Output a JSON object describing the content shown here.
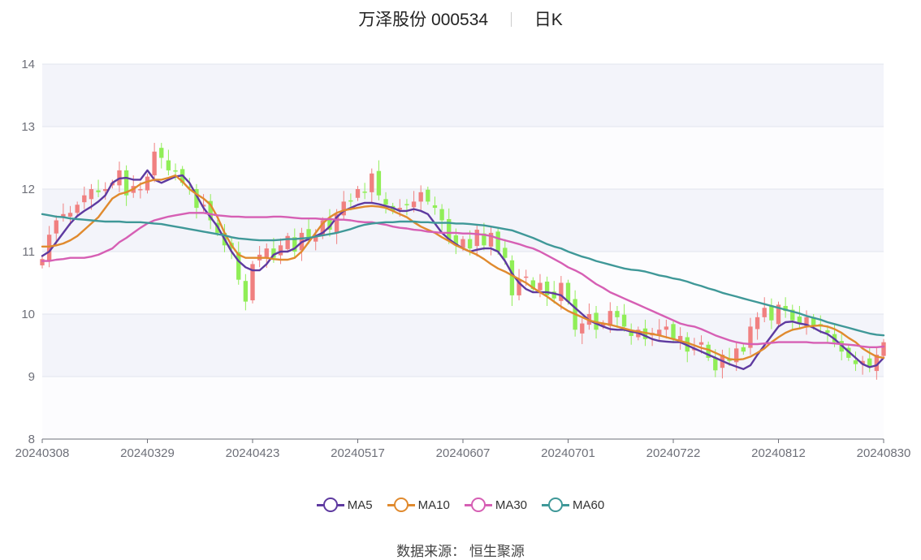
{
  "header": {
    "stock_name": "万泽股份 000534",
    "period": "日K"
  },
  "source_text": "数据来源：  恒生聚源",
  "colors": {
    "up": "#f08080",
    "down": "#90ee57",
    "MA5": "#5e3aa0",
    "MA10": "#e08a2e",
    "MA30": "#d65fb4",
    "MA60": "#3f9898",
    "band": "#f3f4fa",
    "grid": "#e2e4ee",
    "axis": "#6e7079"
  },
  "chart_data": {
    "type": "candlestick",
    "ylim": [
      8,
      14
    ],
    "y_ticks": [
      "8",
      "9",
      "10",
      "11",
      "12",
      "13",
      "14"
    ],
    "x_ticks": [
      "20240308",
      "20240329",
      "20240423",
      "20240517",
      "20240607",
      "20240701",
      "20240722",
      "20240812",
      "20240830"
    ],
    "x_tick_positions": [
      0,
      15,
      30,
      45,
      60,
      75,
      90,
      105,
      120
    ],
    "candle_count": 121,
    "closes": [
      10.88,
      11.27,
      11.5,
      11.6,
      11.62,
      11.75,
      11.9,
      12.0,
      11.95,
      12.0,
      12.1,
      12.3,
      11.9,
      12.05,
      12.0,
      12.2,
      12.6,
      12.5,
      12.3,
      12.28,
      12.1,
      12.02,
      11.7,
      11.75,
      11.5,
      11.3,
      11.1,
      11.05,
      10.55,
      10.2,
      10.8,
      10.95,
      11.05,
      10.9,
      11.1,
      11.25,
      11.0,
      11.3,
      11.2,
      11.25,
      11.5,
      11.35,
      11.6,
      11.8,
      11.8,
      12.0,
      11.95,
      12.25,
      11.9,
      11.75,
      11.65,
      11.7,
      11.75,
      11.8,
      11.95,
      11.8,
      11.7,
      11.5,
      11.2,
      11.1,
      11.2,
      11.05,
      11.35,
      11.1,
      11.3,
      11.0,
      10.9,
      10.3,
      10.55,
      10.6,
      10.4,
      10.5,
      10.3,
      10.25,
      10.5,
      10.2,
      9.75,
      9.85,
      10.0,
      9.75,
      9.85,
      10.05,
      9.95,
      9.8,
      9.65,
      9.75,
      9.6,
      9.7,
      9.75,
      9.8,
      9.6,
      9.65,
      9.4,
      9.45,
      9.55,
      9.3,
      9.1,
      9.35,
      9.25,
      9.45,
      9.4,
      9.8,
      9.95,
      10.1,
      9.9,
      10.15,
      10.05,
      9.9,
      9.85,
      9.95,
      9.8,
      9.8,
      9.7,
      9.55,
      9.4,
      9.3,
      9.2,
      9.25,
      9.15,
      9.35,
      9.55
    ],
    "series": [
      {
        "name": "MA5",
        "values": [
          10.93,
          11.0,
          11.15,
          11.3,
          11.45,
          11.57,
          11.65,
          11.72,
          11.8,
          11.9,
          12.1,
          12.17,
          12.18,
          12.15,
          12.15,
          12.3,
          12.15,
          12.1,
          12.15,
          12.2,
          12.22,
          12.1,
          11.9,
          11.7,
          11.55,
          11.4,
          11.2,
          11.0,
          10.85,
          10.75,
          10.7,
          10.7,
          10.8,
          10.95,
          11.0,
          11.0,
          11.05,
          11.15,
          11.2,
          11.25,
          11.3,
          11.4,
          11.55,
          11.65,
          11.7,
          11.75,
          11.78,
          11.78,
          11.76,
          11.73,
          11.7,
          11.65,
          11.65,
          11.68,
          11.65,
          11.6,
          11.45,
          11.3,
          11.2,
          11.12,
          11.05,
          11.0,
          11.03,
          11.05,
          11.05,
          11.0,
          10.85,
          10.65,
          10.5,
          10.4,
          10.35,
          10.35,
          10.35,
          10.33,
          10.3,
          10.2,
          10.1,
          10.0,
          9.9,
          9.85,
          9.8,
          9.76,
          9.75,
          9.75,
          9.72,
          9.7,
          9.65,
          9.6,
          9.57,
          9.56,
          9.55,
          9.55,
          9.5,
          9.45,
          9.4,
          9.35,
          9.3,
          9.25,
          9.2,
          9.16,
          9.12,
          9.18,
          9.35,
          9.5,
          9.65,
          9.8,
          9.87,
          9.88,
          9.85,
          9.83,
          9.78,
          9.72,
          9.68,
          9.6,
          9.5,
          9.4,
          9.3,
          9.2,
          9.15,
          9.18,
          9.3
        ]
      },
      {
        "name": "MA10",
        "values": [
          11.08,
          11.08,
          11.1,
          11.13,
          11.18,
          11.25,
          11.35,
          11.45,
          11.55,
          11.7,
          11.85,
          11.92,
          11.95,
          12.0,
          12.08,
          12.12,
          12.15,
          12.15,
          12.18,
          12.22,
          12.12,
          12.0,
          11.92,
          11.85,
          11.75,
          11.55,
          11.3,
          11.1,
          10.95,
          10.9,
          10.9,
          10.9,
          10.9,
          10.88,
          10.87,
          10.87,
          10.9,
          11.0,
          11.15,
          11.3,
          11.45,
          11.55,
          11.62,
          11.66,
          11.68,
          11.7,
          11.72,
          11.73,
          11.72,
          11.7,
          11.65,
          11.6,
          11.55,
          11.47,
          11.4,
          11.35,
          11.3,
          11.23,
          11.17,
          11.1,
          11.05,
          11.0,
          10.95,
          10.88,
          10.8,
          10.73,
          10.68,
          10.62,
          10.56,
          10.5,
          10.42,
          10.35,
          10.28,
          10.2,
          10.12,
          10.05,
          10.0,
          9.95,
          9.9,
          9.87,
          9.85,
          9.83,
          9.8,
          9.77,
          9.74,
          9.72,
          9.7,
          9.68,
          9.66,
          9.63,
          9.6,
          9.57,
          9.54,
          9.5,
          9.46,
          9.43,
          9.38,
          9.33,
          9.28,
          9.27,
          9.28,
          9.32,
          9.38,
          9.45,
          9.55,
          9.63,
          9.7,
          9.75,
          9.77,
          9.8,
          9.81,
          9.82,
          9.8,
          9.76,
          9.7,
          9.62,
          9.55,
          9.45,
          9.38,
          9.32,
          9.3
        ]
      },
      {
        "name": "MA30",
        "values": [
          10.85,
          10.85,
          10.87,
          10.88,
          10.9,
          10.9,
          10.9,
          10.92,
          10.95,
          11.0,
          11.05,
          11.15,
          11.22,
          11.3,
          11.38,
          11.45,
          11.5,
          11.53,
          11.56,
          11.58,
          11.6,
          11.62,
          11.62,
          11.62,
          11.6,
          11.58,
          11.57,
          11.56,
          11.56,
          11.55,
          11.55,
          11.55,
          11.55,
          11.56,
          11.56,
          11.55,
          11.54,
          11.53,
          11.53,
          11.53,
          11.52,
          11.52,
          11.51,
          11.51,
          11.5,
          11.48,
          11.47,
          11.47,
          11.45,
          11.43,
          11.4,
          11.38,
          11.37,
          11.35,
          11.34,
          11.32,
          11.31,
          11.3,
          11.3,
          11.3,
          11.29,
          11.29,
          11.28,
          11.27,
          11.25,
          11.21,
          11.18,
          11.15,
          11.12,
          11.08,
          11.05,
          11.0,
          10.94,
          10.88,
          10.82,
          10.75,
          10.7,
          10.64,
          10.56,
          10.48,
          10.42,
          10.35,
          10.3,
          10.25,
          10.2,
          10.15,
          10.1,
          10.05,
          10.0,
          9.95,
          9.9,
          9.85,
          9.82,
          9.8,
          9.76,
          9.71,
          9.66,
          9.62,
          9.58,
          9.55,
          9.53,
          9.52,
          9.52,
          9.53,
          9.54,
          9.55,
          9.55,
          9.55,
          9.55,
          9.55,
          9.54,
          9.54,
          9.54,
          9.53,
          9.52,
          9.51,
          9.5,
          9.48,
          9.47,
          9.47,
          9.48
        ]
      },
      {
        "name": "MA60",
        "values": [
          11.6,
          11.58,
          11.56,
          11.55,
          11.53,
          11.52,
          11.51,
          11.5,
          11.49,
          11.48,
          11.48,
          11.48,
          11.47,
          11.47,
          11.47,
          11.46,
          11.45,
          11.44,
          11.42,
          11.4,
          11.38,
          11.36,
          11.34,
          11.32,
          11.3,
          11.28,
          11.26,
          11.23,
          11.21,
          11.2,
          11.19,
          11.18,
          11.18,
          11.18,
          11.19,
          11.2,
          11.2,
          11.21,
          11.22,
          11.24,
          11.26,
          11.28,
          11.3,
          11.33,
          11.36,
          11.4,
          11.43,
          11.45,
          11.46,
          11.47,
          11.47,
          11.48,
          11.48,
          11.48,
          11.47,
          11.47,
          11.46,
          11.46,
          11.46,
          11.45,
          11.45,
          11.44,
          11.43,
          11.42,
          11.4,
          11.38,
          11.36,
          11.34,
          11.3,
          11.26,
          11.22,
          11.17,
          11.12,
          11.08,
          11.05,
          11.0,
          10.96,
          10.92,
          10.89,
          10.85,
          10.82,
          10.79,
          10.76,
          10.73,
          10.71,
          10.7,
          10.68,
          10.65,
          10.62,
          10.6,
          10.57,
          10.55,
          10.52,
          10.48,
          10.45,
          10.41,
          10.38,
          10.34,
          10.31,
          10.28,
          10.25,
          10.22,
          10.19,
          10.16,
          10.13,
          10.1,
          10.07,
          10.04,
          10.01,
          9.97,
          9.94,
          9.91,
          9.87,
          9.84,
          9.81,
          9.78,
          9.75,
          9.72,
          9.69,
          9.67,
          9.66
        ]
      }
    ],
    "legend": [
      "MA5",
      "MA10",
      "MA30",
      "MA60"
    ],
    "legend_position": "bottom-center"
  }
}
